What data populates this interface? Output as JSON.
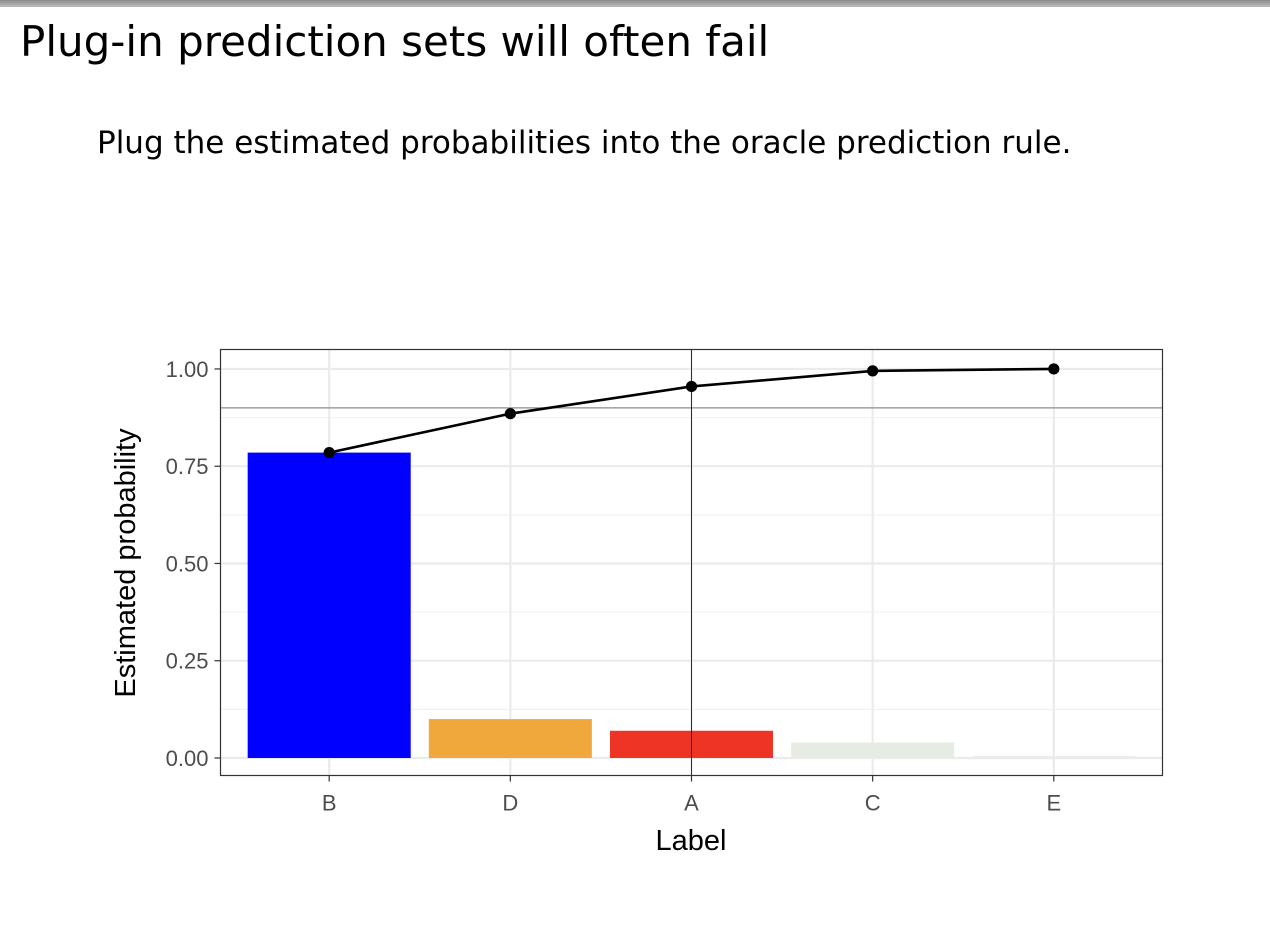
{
  "slide": {
    "title": "Plug-in prediction sets will often fail",
    "subtitle": "Plug the estimated probabilities into the oracle prediction rule."
  },
  "chart_data": {
    "type": "bar",
    "categories": [
      "B",
      "D",
      "A",
      "C",
      "E"
    ],
    "values": [
      0.785,
      0.1,
      0.07,
      0.04,
      0.005
    ],
    "bar_colors": [
      "#0000ff",
      "#f0a83c",
      "#ee3424",
      "#e6ece3",
      "#eaecf0"
    ],
    "cumulative": {
      "type": "line",
      "values": [
        0.785,
        0.885,
        0.955,
        0.995,
        1.0
      ],
      "color": "#000000"
    },
    "threshold_y": 0.9,
    "threshold_color": "#8c8c8c",
    "marker_category": "A",
    "xlabel": "Label",
    "ylabel": "Estimated probability",
    "yticks": [
      "0.00",
      "0.25",
      "0.50",
      "0.75",
      "1.00"
    ],
    "ylim": [
      -0.045,
      1.05
    ],
    "grid": true
  }
}
